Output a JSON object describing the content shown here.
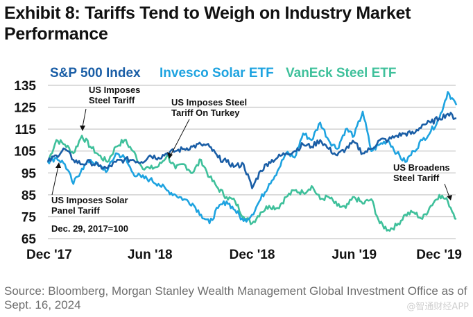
{
  "title": "Exhibit 8: Tariffs Tend to Weigh on Industry Market Performance",
  "source": "Source: Bloomberg, Morgan Stanley Wealth Management Global Investment Office as of Sept. 16, 2024",
  "watermark": "@智通财经APP",
  "colors": {
    "sp500": "#1a5ea6",
    "solar": "#1ea3e0",
    "steel": "#3fc09b",
    "grid": "#c8c8c8",
    "text": "#111111"
  },
  "chart_data": {
    "type": "line",
    "title": "Exhibit 8: Tariffs Tend to Weigh on Industry Market Performance",
    "xlabel": "",
    "ylabel": "",
    "base_note": "Dec. 29, 2017=100",
    "ylim": [
      65,
      135
    ],
    "yticks": [
      135,
      125,
      115,
      105,
      95,
      85,
      75,
      65
    ],
    "xticks": [
      {
        "label": "Dec '17",
        "month": 0
      },
      {
        "label": "Jun '18",
        "month": 6
      },
      {
        "label": "Dec '18",
        "month": 12
      },
      {
        "label": "Jun '19",
        "month": 18
      },
      {
        "label": "Dec '19",
        "month": 24
      }
    ],
    "grid": true,
    "legend": "top",
    "x_months": [
      0,
      0.5,
      1,
      1.5,
      2,
      2.5,
      3,
      3.5,
      4,
      4.5,
      5,
      5.5,
      6,
      6.5,
      7,
      7.5,
      8,
      8.5,
      9,
      9.5,
      10,
      10.5,
      11,
      11.5,
      12,
      12.5,
      13,
      13.5,
      14,
      14.5,
      15,
      15.5,
      16,
      16.5,
      17,
      17.5,
      18,
      18.5,
      19,
      19.5,
      20,
      20.5,
      21,
      21.5,
      22,
      22.5,
      23,
      23.5,
      24
    ],
    "series": [
      {
        "name": "S&P 500 Index",
        "color": "#1a5ea6",
        "values": [
          100,
          103,
          106,
          101,
          99,
          100,
          98,
          97,
          100,
          101,
          101,
          100,
          103,
          102,
          104,
          105,
          106,
          107,
          108,
          107,
          102,
          100,
          98,
          99,
          88,
          96,
          100,
          102,
          104,
          105,
          108,
          107,
          110,
          106,
          103,
          106,
          109,
          104,
          106,
          110,
          110,
          112,
          113,
          113,
          117,
          118,
          120,
          122,
          120
        ]
      },
      {
        "name": "Invesco Solar ETF",
        "color": "#1ea3e0",
        "values": [
          100,
          102,
          99,
          90,
          97,
          101,
          98,
          96,
          104,
          102,
          95,
          93,
          92,
          90,
          87,
          85,
          83,
          81,
          76,
          72,
          79,
          82,
          78,
          73,
          76,
          83,
          90,
          96,
          104,
          102,
          113,
          110,
          118,
          110,
          106,
          115,
          112,
          123,
          105,
          108,
          110,
          104,
          100,
          105,
          110,
          114,
          120,
          132,
          126
        ]
      },
      {
        "name": "VanEck Steel ETF",
        "color": "#3fc09b",
        "values": [
          100,
          110,
          108,
          104,
          112,
          107,
          103,
          100,
          107,
          110,
          105,
          98,
          97,
          98,
          103,
          97,
          99,
          95,
          101,
          93,
          88,
          84,
          82,
          75,
          72,
          77,
          80,
          79,
          84,
          87,
          86,
          89,
          83,
          84,
          80,
          79,
          84,
          81,
          83,
          72,
          69,
          71,
          76,
          77,
          74,
          80,
          85,
          82,
          74
        ]
      }
    ],
    "annotations": [
      {
        "text": "US Imposes Steel Tariff",
        "lines": [
          "US Imposes",
          "Steel Tariff"
        ],
        "month": 2
      },
      {
        "text": "US Imposes Steel Tariff On Turkey",
        "lines": [
          "US Imposes Steel",
          "Tariff On Turkey"
        ],
        "month": 7.5
      },
      {
        "text": "US Imposes Solar Panel Tariff",
        "lines": [
          "US Imposes Solar",
          "Panel Tariff"
        ],
        "month": 0.7
      },
      {
        "text": "US Broadens Steel Tariff",
        "lines": [
          "US Broadens",
          "Steel Tariff"
        ],
        "month": 23.5
      }
    ]
  }
}
